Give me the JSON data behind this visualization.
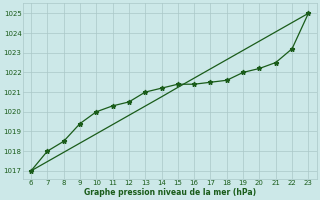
{
  "x": [
    6,
    7,
    8,
    9,
    10,
    11,
    12,
    13,
    14,
    15,
    16,
    17,
    18,
    19,
    20,
    21,
    22,
    23
  ],
  "y_data": [
    1017.0,
    1018.0,
    1018.5,
    1019.4,
    1020.0,
    1020.3,
    1020.5,
    1021.0,
    1021.2,
    1021.4,
    1021.4,
    1021.5,
    1021.6,
    1022.0,
    1022.2,
    1022.5,
    1023.2,
    1025.0
  ],
  "y_straight": [
    1017.0,
    1017.47,
    1017.94,
    1018.41,
    1018.88,
    1019.35,
    1019.82,
    1020.29,
    1020.76,
    1021.24,
    1021.71,
    1022.18,
    1022.65,
    1023.12,
    1023.59,
    1024.06,
    1024.53,
    1025.0
  ],
  "xlim": [
    5.5,
    23.5
  ],
  "ylim": [
    1016.6,
    1025.5
  ],
  "yticks": [
    1017,
    1018,
    1019,
    1020,
    1021,
    1022,
    1023,
    1024,
    1025
  ],
  "xticks": [
    6,
    7,
    8,
    9,
    10,
    11,
    12,
    13,
    14,
    15,
    16,
    17,
    18,
    19,
    20,
    21,
    22,
    23
  ],
  "line_color": "#1a5c1a",
  "background_color": "#cce8e8",
  "grid_color": "#aac8c8",
  "xlabel": "Graphe pression niveau de la mer (hPa)",
  "xlabel_color": "#1a5c1a",
  "tick_color": "#1a5c1a"
}
